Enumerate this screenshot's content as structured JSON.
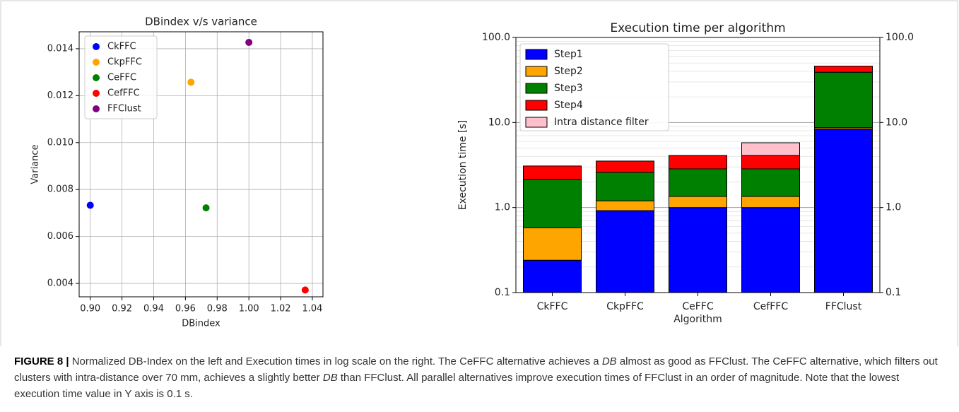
{
  "chart_data": [
    {
      "type": "scatter",
      "title": "DBindex v/s variance",
      "x_label": "DBindex",
      "y_label": "Variance",
      "xlim": [
        0.893,
        1.0467
      ],
      "ylim": [
        0.00343,
        0.01472
      ],
      "xticks": [
        {
          "value": 0.9,
          "label": "0.90"
        },
        {
          "value": 0.92,
          "label": "0.92"
        },
        {
          "value": 0.94,
          "label": "0.94"
        },
        {
          "value": 0.96,
          "label": "0.96"
        },
        {
          "value": 0.98,
          "label": "0.98"
        },
        {
          "value": 1.0,
          "label": "1.00"
        },
        {
          "value": 1.02,
          "label": "1.02"
        },
        {
          "value": 1.04,
          "label": "1.04"
        }
      ],
      "yticks": [
        0.004,
        0.006,
        0.008,
        {
          "value": 0.01,
          "label": "0.010"
        },
        0.012,
        0.014
      ],
      "grid": true,
      "legend": "upper left",
      "series": [
        {
          "name": "CkFFC",
          "color": "#0000ff",
          "x": [
            0.9
          ],
          "values": [
            0.00733
          ]
        },
        {
          "name": "CkpFFC",
          "color": "#ffa500",
          "x": [
            0.9635
          ],
          "values": [
            0.01257
          ]
        },
        {
          "name": "CeFFC",
          "color": "#008000",
          "x": [
            0.973
          ],
          "values": [
            0.00722
          ]
        },
        {
          "name": "CefFFC",
          "color": "#ff0000",
          "x": [
            1.0355
          ],
          "values": [
            0.00372
          ]
        },
        {
          "name": "FFClust",
          "color": "#800080",
          "x": [
            1.0
          ],
          "values": [
            0.01427
          ]
        }
      ]
    },
    {
      "type": "stacked_bar",
      "title": "Execution time per algorithm",
      "x_label": "Algorithm",
      "y_label": "Execution time [s]",
      "log_scale": true,
      "ylim": [
        0.1,
        100
      ],
      "y2lim": [
        0.1,
        100
      ],
      "yticks": [
        0.1,
        {
          "value": 1,
          "label": "1.0"
        },
        {
          "value": 10,
          "label": "10.0"
        },
        {
          "value": 100,
          "label": "100.0"
        }
      ],
      "y2ticks": [
        0.1,
        {
          "value": 1,
          "label": "1.0"
        },
        {
          "value": 10,
          "label": "10.0"
        },
        {
          "value": 100,
          "label": "100.0"
        }
      ],
      "yticks_minor": [
        0.2,
        0.3,
        0.4,
        0.5,
        0.6,
        0.7,
        0.8,
        0.9,
        2,
        3,
        4,
        5,
        6,
        7,
        8,
        9,
        20,
        30,
        40,
        50,
        60,
        70,
        80,
        90
      ],
      "grid": true,
      "legend": "upper left",
      "categories": [
        "CkFFC",
        "CkpFFC",
        "CeFFC",
        "CefFFC",
        "FFClust"
      ],
      "series": [
        {
          "name": "Step1",
          "color": "#0000ff",
          "values": [
            0.24,
            0.92,
            1.0,
            1.0,
            8.4
          ]
        },
        {
          "name": "Step2",
          "color": "#ffa500",
          "values": [
            0.34,
            0.28,
            0.35,
            0.35,
            0.3
          ]
        },
        {
          "name": "Step3",
          "color": "#008000",
          "values": [
            1.56,
            1.39,
            1.5,
            1.5,
            30.3
          ]
        },
        {
          "name": "Step4",
          "color": "#ff0000",
          "values": [
            0.94,
            0.93,
            1.25,
            1.25,
            7
          ]
        },
        {
          "name": "Intra distance filter",
          "color": "#ffc0cb",
          "values": [
            null,
            null,
            null,
            1.68,
            null
          ]
        }
      ]
    }
  ],
  "caption": {
    "label": "FIGURE 8 |",
    "text": [
      " Normalized DB-Index on the left and Execution times in log scale on the right. The CeFFC alternative achieves a ",
      "DB",
      " almost as good as FFClust. The CeFFC alternative, which filters out clusters with intra-distance over 70 mm, achieves a slightly better ",
      "DB",
      " than FFClust. All parallel alternatives improve execution times of FFClust in an order of magnitude. Note that the lowest execution time value in Y axis is 0.1 s."
    ]
  }
}
